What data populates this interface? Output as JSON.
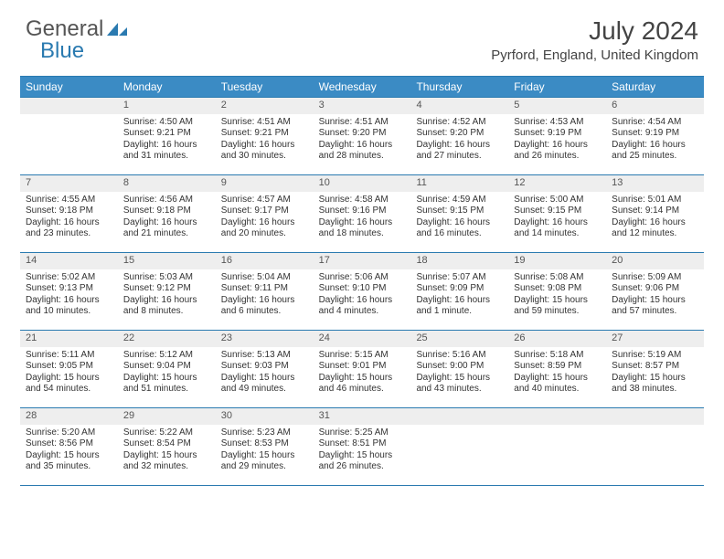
{
  "logo": {
    "text1": "General",
    "text2": "Blue"
  },
  "title": "July 2024",
  "location": "Pyrford, England, United Kingdom",
  "colors": {
    "header_bg": "#3b8bc4",
    "border": "#2a7ab0",
    "daynum_bg": "#eeeeee",
    "text": "#333333"
  },
  "day_names": [
    "Sunday",
    "Monday",
    "Tuesday",
    "Wednesday",
    "Thursday",
    "Friday",
    "Saturday"
  ],
  "weeks": [
    [
      null,
      {
        "n": "1",
        "sr": "Sunrise: 4:50 AM",
        "ss": "Sunset: 9:21 PM",
        "d1": "Daylight: 16 hours",
        "d2": "and 31 minutes."
      },
      {
        "n": "2",
        "sr": "Sunrise: 4:51 AM",
        "ss": "Sunset: 9:21 PM",
        "d1": "Daylight: 16 hours",
        "d2": "and 30 minutes."
      },
      {
        "n": "3",
        "sr": "Sunrise: 4:51 AM",
        "ss": "Sunset: 9:20 PM",
        "d1": "Daylight: 16 hours",
        "d2": "and 28 minutes."
      },
      {
        "n": "4",
        "sr": "Sunrise: 4:52 AM",
        "ss": "Sunset: 9:20 PM",
        "d1": "Daylight: 16 hours",
        "d2": "and 27 minutes."
      },
      {
        "n": "5",
        "sr": "Sunrise: 4:53 AM",
        "ss": "Sunset: 9:19 PM",
        "d1": "Daylight: 16 hours",
        "d2": "and 26 minutes."
      },
      {
        "n": "6",
        "sr": "Sunrise: 4:54 AM",
        "ss": "Sunset: 9:19 PM",
        "d1": "Daylight: 16 hours",
        "d2": "and 25 minutes."
      }
    ],
    [
      {
        "n": "7",
        "sr": "Sunrise: 4:55 AM",
        "ss": "Sunset: 9:18 PM",
        "d1": "Daylight: 16 hours",
        "d2": "and 23 minutes."
      },
      {
        "n": "8",
        "sr": "Sunrise: 4:56 AM",
        "ss": "Sunset: 9:18 PM",
        "d1": "Daylight: 16 hours",
        "d2": "and 21 minutes."
      },
      {
        "n": "9",
        "sr": "Sunrise: 4:57 AM",
        "ss": "Sunset: 9:17 PM",
        "d1": "Daylight: 16 hours",
        "d2": "and 20 minutes."
      },
      {
        "n": "10",
        "sr": "Sunrise: 4:58 AM",
        "ss": "Sunset: 9:16 PM",
        "d1": "Daylight: 16 hours",
        "d2": "and 18 minutes."
      },
      {
        "n": "11",
        "sr": "Sunrise: 4:59 AM",
        "ss": "Sunset: 9:15 PM",
        "d1": "Daylight: 16 hours",
        "d2": "and 16 minutes."
      },
      {
        "n": "12",
        "sr": "Sunrise: 5:00 AM",
        "ss": "Sunset: 9:15 PM",
        "d1": "Daylight: 16 hours",
        "d2": "and 14 minutes."
      },
      {
        "n": "13",
        "sr": "Sunrise: 5:01 AM",
        "ss": "Sunset: 9:14 PM",
        "d1": "Daylight: 16 hours",
        "d2": "and 12 minutes."
      }
    ],
    [
      {
        "n": "14",
        "sr": "Sunrise: 5:02 AM",
        "ss": "Sunset: 9:13 PM",
        "d1": "Daylight: 16 hours",
        "d2": "and 10 minutes."
      },
      {
        "n": "15",
        "sr": "Sunrise: 5:03 AM",
        "ss": "Sunset: 9:12 PM",
        "d1": "Daylight: 16 hours",
        "d2": "and 8 minutes."
      },
      {
        "n": "16",
        "sr": "Sunrise: 5:04 AM",
        "ss": "Sunset: 9:11 PM",
        "d1": "Daylight: 16 hours",
        "d2": "and 6 minutes."
      },
      {
        "n": "17",
        "sr": "Sunrise: 5:06 AM",
        "ss": "Sunset: 9:10 PM",
        "d1": "Daylight: 16 hours",
        "d2": "and 4 minutes."
      },
      {
        "n": "18",
        "sr": "Sunrise: 5:07 AM",
        "ss": "Sunset: 9:09 PM",
        "d1": "Daylight: 16 hours",
        "d2": "and 1 minute."
      },
      {
        "n": "19",
        "sr": "Sunrise: 5:08 AM",
        "ss": "Sunset: 9:08 PM",
        "d1": "Daylight: 15 hours",
        "d2": "and 59 minutes."
      },
      {
        "n": "20",
        "sr": "Sunrise: 5:09 AM",
        "ss": "Sunset: 9:06 PM",
        "d1": "Daylight: 15 hours",
        "d2": "and 57 minutes."
      }
    ],
    [
      {
        "n": "21",
        "sr": "Sunrise: 5:11 AM",
        "ss": "Sunset: 9:05 PM",
        "d1": "Daylight: 15 hours",
        "d2": "and 54 minutes."
      },
      {
        "n": "22",
        "sr": "Sunrise: 5:12 AM",
        "ss": "Sunset: 9:04 PM",
        "d1": "Daylight: 15 hours",
        "d2": "and 51 minutes."
      },
      {
        "n": "23",
        "sr": "Sunrise: 5:13 AM",
        "ss": "Sunset: 9:03 PM",
        "d1": "Daylight: 15 hours",
        "d2": "and 49 minutes."
      },
      {
        "n": "24",
        "sr": "Sunrise: 5:15 AM",
        "ss": "Sunset: 9:01 PM",
        "d1": "Daylight: 15 hours",
        "d2": "and 46 minutes."
      },
      {
        "n": "25",
        "sr": "Sunrise: 5:16 AM",
        "ss": "Sunset: 9:00 PM",
        "d1": "Daylight: 15 hours",
        "d2": "and 43 minutes."
      },
      {
        "n": "26",
        "sr": "Sunrise: 5:18 AM",
        "ss": "Sunset: 8:59 PM",
        "d1": "Daylight: 15 hours",
        "d2": "and 40 minutes."
      },
      {
        "n": "27",
        "sr": "Sunrise: 5:19 AM",
        "ss": "Sunset: 8:57 PM",
        "d1": "Daylight: 15 hours",
        "d2": "and 38 minutes."
      }
    ],
    [
      {
        "n": "28",
        "sr": "Sunrise: 5:20 AM",
        "ss": "Sunset: 8:56 PM",
        "d1": "Daylight: 15 hours",
        "d2": "and 35 minutes."
      },
      {
        "n": "29",
        "sr": "Sunrise: 5:22 AM",
        "ss": "Sunset: 8:54 PM",
        "d1": "Daylight: 15 hours",
        "d2": "and 32 minutes."
      },
      {
        "n": "30",
        "sr": "Sunrise: 5:23 AM",
        "ss": "Sunset: 8:53 PM",
        "d1": "Daylight: 15 hours",
        "d2": "and 29 minutes."
      },
      {
        "n": "31",
        "sr": "Sunrise: 5:25 AM",
        "ss": "Sunset: 8:51 PM",
        "d1": "Daylight: 15 hours",
        "d2": "and 26 minutes."
      },
      null,
      null,
      null
    ]
  ]
}
